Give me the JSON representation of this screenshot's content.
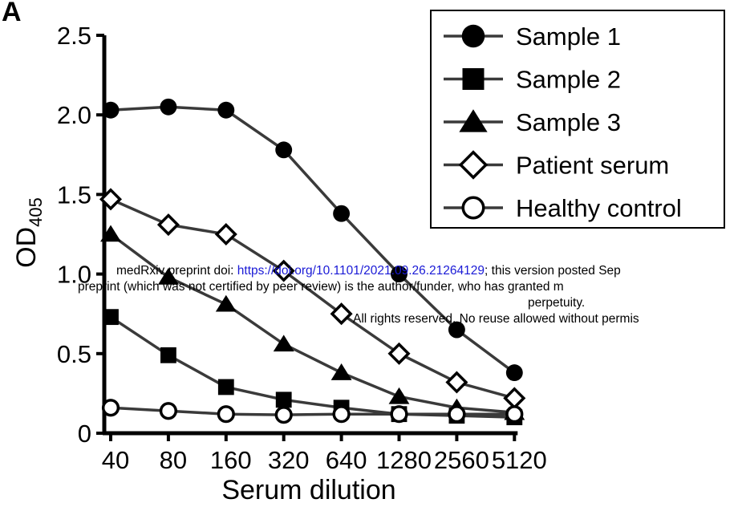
{
  "panel_label": "A",
  "watermark": {
    "line1_prefix": "medRxiv preprint doi: ",
    "line1_link": "https://doi.org/10.1101/2021.09.26.21264129",
    "line1_suffix": "; this version posted Sep",
    "line2": "preprint (which was not certified by peer review) is the author/funder, who has granted m",
    "line3": "perpetuity.",
    "line4": "All rights reserved. No reuse allowed without permis"
  },
  "chart_data": {
    "type": "line",
    "title": "",
    "xlabel": "Serum dilution",
    "ylabel_main": "OD",
    "ylabel_sub": "405",
    "categories": [
      "40",
      "80",
      "160",
      "320",
      "640",
      "1280",
      "2560",
      "5120"
    ],
    "y_ticks": [
      "0",
      "0.5",
      "1.0",
      "1.5",
      "2.0",
      "2.5"
    ],
    "y_tick_values": [
      0,
      0.5,
      1.0,
      1.5,
      2.0,
      2.5
    ],
    "ylim": [
      0,
      2.5
    ],
    "grid": false,
    "legend_position": "top-right",
    "series": [
      {
        "name": "Sample 1",
        "marker": "circle-filled",
        "values": [
          2.03,
          2.05,
          2.03,
          1.78,
          1.38,
          1.0,
          0.65,
          0.38
        ]
      },
      {
        "name": "Sample 2",
        "marker": "square-filled",
        "values": [
          0.73,
          0.49,
          0.29,
          0.21,
          0.16,
          0.12,
          0.11,
          0.1
        ]
      },
      {
        "name": "Sample 3",
        "marker": "triangle-filled",
        "values": [
          1.25,
          0.98,
          0.81,
          0.56,
          0.38,
          0.23,
          0.16,
          0.13
        ]
      },
      {
        "name": "Patient serum",
        "marker": "diamond-open",
        "values": [
          1.47,
          1.31,
          1.25,
          1.02,
          0.75,
          0.5,
          0.32,
          0.22
        ]
      },
      {
        "name": "Healthy control",
        "marker": "circle-open",
        "values": [
          0.16,
          0.14,
          0.12,
          0.115,
          0.12,
          0.12,
          0.12,
          0.12
        ]
      }
    ],
    "colors": {
      "line": "#3a3a3a",
      "marker": "#000000",
      "link": "#1a1ad6"
    }
  }
}
